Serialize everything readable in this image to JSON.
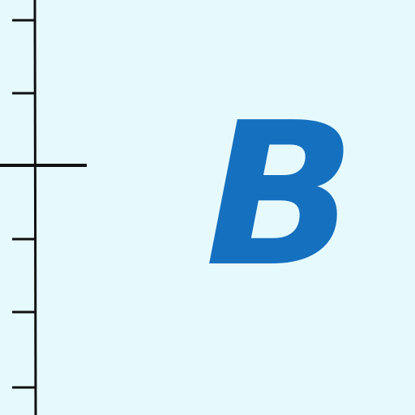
{
  "colors": {
    "background": "#e6fafd",
    "letter": "#1670c0",
    "ruler": "#111111"
  },
  "panel": {
    "label": "B"
  },
  "ruler": {
    "orientation": "vertical",
    "side": "left",
    "minor_tick_count": 5,
    "major_tick_count": 1,
    "major_tick_extends_both_sides": true
  }
}
